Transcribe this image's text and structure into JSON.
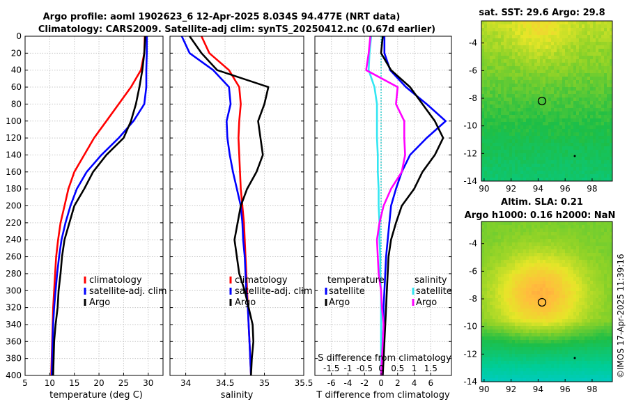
{
  "figure": {
    "title_line1": "Argo profile: aoml 1902623_6 12-Apr-2025 8.034S 94.477E (NRT data)",
    "title_line2": "Climatology: CARS2009. Satellite-adj clim: synTS_20250412.nc (0.67d earlier)",
    "watermark": "©IMOS 17-Apr-2025 11:39:16"
  },
  "colors": {
    "climatology": "#ff0000",
    "satellite": "#0000ff",
    "argo": "#000000",
    "s_satellite": "#33e6f2",
    "s_argo": "#ff00ff",
    "cyan_zero": "#00c0c0"
  },
  "legends": {
    "climatology": "climatology",
    "satellite": "satellite-adj. clim",
    "argo": "Argo",
    "temperature": "temperature",
    "salinity": "salinity",
    "sat_short": "satellite"
  },
  "chart_data": [
    {
      "type": "line",
      "id": "temperature",
      "xlabel": "temperature (deg C)",
      "xlim": [
        5,
        33
      ],
      "xticks": [
        5,
        10,
        15,
        20,
        25,
        30
      ],
      "ylim": [
        0,
        400
      ],
      "yticks": [
        0,
        20,
        40,
        60,
        80,
        100,
        120,
        140,
        160,
        180,
        200,
        220,
        240,
        260,
        280,
        300,
        320,
        340,
        360,
        380,
        400
      ],
      "series": [
        {
          "name": "climatology",
          "color": "#ff0000",
          "points": [
            [
              29.3,
              0
            ],
            [
              29.2,
              20
            ],
            [
              28.5,
              40
            ],
            [
              26.5,
              60
            ],
            [
              24,
              80
            ],
            [
              21.5,
              100
            ],
            [
              19,
              120
            ],
            [
              17,
              140
            ],
            [
              15,
              160
            ],
            [
              13.8,
              180
            ],
            [
              13,
              200
            ],
            [
              12.2,
              220
            ],
            [
              11.7,
              240
            ],
            [
              11.3,
              260
            ],
            [
              11.1,
              280
            ],
            [
              10.9,
              300
            ],
            [
              10.7,
              320
            ],
            [
              10.6,
              340
            ],
            [
              10.5,
              360
            ],
            [
              10.4,
              380
            ],
            [
              10.3,
              400
            ]
          ]
        },
        {
          "name": "satellite-adj. clim",
          "color": "#0000ff",
          "points": [
            [
              29.7,
              0
            ],
            [
              29.7,
              20
            ],
            [
              29.6,
              40
            ],
            [
              29.6,
              60
            ],
            [
              29.2,
              80
            ],
            [
              27,
              100
            ],
            [
              24,
              120
            ],
            [
              20.5,
              140
            ],
            [
              17.5,
              160
            ],
            [
              15.5,
              180
            ],
            [
              14.2,
              200
            ],
            [
              13.2,
              220
            ],
            [
              12.4,
              240
            ],
            [
              11.9,
              260
            ],
            [
              11.5,
              280
            ],
            [
              11.2,
              300
            ],
            [
              10.9,
              320
            ],
            [
              10.7,
              340
            ],
            [
              10.6,
              360
            ],
            [
              10.5,
              380
            ],
            [
              10.4,
              400
            ]
          ]
        },
        {
          "name": "Argo",
          "color": "#000000",
          "points": [
            [
              29.4,
              0
            ],
            [
              29.2,
              20
            ],
            [
              28.8,
              40
            ],
            [
              28.2,
              60
            ],
            [
              27.5,
              80
            ],
            [
              26.5,
              100
            ],
            [
              25,
              120
            ],
            [
              21.5,
              140
            ],
            [
              18.8,
              160
            ],
            [
              17,
              180
            ],
            [
              15,
              200
            ],
            [
              14,
              220
            ],
            [
              13,
              240
            ],
            [
              12.5,
              260
            ],
            [
              12.2,
              280
            ],
            [
              11.8,
              300
            ],
            [
              11.6,
              320
            ],
            [
              11.2,
              340
            ],
            [
              10.9,
              360
            ],
            [
              10.8,
              380
            ],
            [
              10.7,
              400
            ]
          ]
        }
      ]
    },
    {
      "type": "line",
      "id": "salinity",
      "xlabel": "salinity",
      "xlim": [
        33.8,
        35.5
      ],
      "xticks": [
        34,
        34.5,
        35,
        35.5
      ],
      "ylim": [
        0,
        400
      ],
      "series": [
        {
          "name": "climatology",
          "color": "#ff0000",
          "points": [
            [
              34.2,
              0
            ],
            [
              34.3,
              20
            ],
            [
              34.55,
              40
            ],
            [
              34.68,
              60
            ],
            [
              34.7,
              80
            ],
            [
              34.68,
              100
            ],
            [
              34.67,
              120
            ],
            [
              34.68,
              140
            ],
            [
              34.69,
              160
            ],
            [
              34.7,
              180
            ],
            [
              34.72,
              200
            ],
            [
              34.74,
              220
            ],
            [
              34.75,
              240
            ],
            [
              34.76,
              260
            ],
            [
              34.77,
              280
            ],
            [
              34.78,
              300
            ],
            [
              34.79,
              320
            ],
            [
              34.8,
              340
            ],
            [
              34.81,
              360
            ],
            [
              34.82,
              380
            ],
            [
              34.83,
              400
            ]
          ]
        },
        {
          "name": "satellite-adj. clim",
          "color": "#0000ff",
          "points": [
            [
              33.95,
              0
            ],
            [
              34.05,
              20
            ],
            [
              34.35,
              40
            ],
            [
              34.55,
              60
            ],
            [
              34.57,
              80
            ],
            [
              34.52,
              100
            ],
            [
              34.53,
              120
            ],
            [
              34.56,
              140
            ],
            [
              34.6,
              160
            ],
            [
              34.65,
              180
            ],
            [
              34.7,
              200
            ],
            [
              34.72,
              220
            ],
            [
              34.73,
              240
            ],
            [
              34.75,
              260
            ],
            [
              34.76,
              280
            ],
            [
              34.77,
              300
            ],
            [
              34.79,
              320
            ],
            [
              34.8,
              340
            ],
            [
              34.81,
              360
            ],
            [
              34.82,
              380
            ],
            [
              34.83,
              400
            ]
          ]
        },
        {
          "name": "Argo",
          "color": "#000000",
          "points": [
            [
              34.05,
              0
            ],
            [
              34.2,
              20
            ],
            [
              34.4,
              40
            ],
            [
              35.05,
              60
            ],
            [
              35.0,
              80
            ],
            [
              34.92,
              100
            ],
            [
              34.95,
              120
            ],
            [
              34.98,
              140
            ],
            [
              34.9,
              160
            ],
            [
              34.78,
              180
            ],
            [
              34.7,
              200
            ],
            [
              34.66,
              220
            ],
            [
              34.62,
              240
            ],
            [
              34.65,
              260
            ],
            [
              34.68,
              280
            ],
            [
              34.75,
              300
            ],
            [
              34.8,
              320
            ],
            [
              34.85,
              340
            ],
            [
              34.86,
              360
            ],
            [
              34.84,
              380
            ],
            [
              34.83,
              400
            ]
          ]
        }
      ]
    },
    {
      "type": "line",
      "id": "difference",
      "xlabel": "T difference from climatology",
      "xlim": [
        -8,
        8.5
      ],
      "xticks": [
        -6,
        -4,
        -2,
        0,
        2,
        4,
        6
      ],
      "sxlabel": "S difference from climatology",
      "sxticks": [
        {
          "label": "-1.5",
          "t": -6
        },
        {
          "label": "-1",
          "t": -4
        },
        {
          "label": "-0.5",
          "t": -2
        },
        {
          "label": "0",
          "t": 0
        },
        {
          "label": "0.5",
          "t": 2
        },
        {
          "label": "1",
          "t": 4
        },
        {
          "label": "1.5",
          "t": 6
        }
      ],
      "ylim": [
        0,
        400
      ],
      "series": [
        {
          "name": "T satellite",
          "color": "#0000ff",
          "points": [
            [
              0.4,
              0
            ],
            [
              0.4,
              20
            ],
            [
              1.1,
              40
            ],
            [
              3,
              60
            ],
            [
              5.5,
              80
            ],
            [
              7.8,
              100
            ],
            [
              5.5,
              120
            ],
            [
              3.5,
              140
            ],
            [
              2.5,
              160
            ],
            [
              1.8,
              180
            ],
            [
              1.2,
              200
            ],
            [
              1.0,
              220
            ],
            [
              0.8,
              240
            ],
            [
              0.6,
              260
            ],
            [
              0.5,
              280
            ],
            [
              0.4,
              300
            ],
            [
              0.3,
              320
            ],
            [
              0.3,
              340
            ],
            [
              0.2,
              360
            ],
            [
              0.2,
              380
            ],
            [
              0.1,
              400
            ]
          ]
        },
        {
          "name": "T Argo",
          "color": "#000000",
          "points": [
            [
              0.2,
              0
            ],
            [
              0,
              20
            ],
            [
              1.2,
              40
            ],
            [
              3.5,
              60
            ],
            [
              5,
              80
            ],
            [
              6.5,
              100
            ],
            [
              7.5,
              120
            ],
            [
              6.5,
              140
            ],
            [
              5,
              160
            ],
            [
              4,
              180
            ],
            [
              2.5,
              200
            ],
            [
              1.8,
              220
            ],
            [
              1.2,
              240
            ],
            [
              0.9,
              260
            ],
            [
              0.8,
              280
            ],
            [
              0.7,
              300
            ],
            [
              0.6,
              320
            ],
            [
              0.5,
              340
            ],
            [
              0.4,
              360
            ],
            [
              0.3,
              380
            ],
            [
              0.2,
              400
            ]
          ]
        },
        {
          "name": "S satellite",
          "color": "#33e6f2",
          "points": [
            [
              -1.2,
              0
            ],
            [
              -1.4,
              20
            ],
            [
              -1.5,
              40
            ],
            [
              -0.8,
              60
            ],
            [
              -0.5,
              80
            ],
            [
              -0.5,
              100
            ],
            [
              -0.5,
              120
            ],
            [
              -0.4,
              140
            ],
            [
              -0.4,
              160
            ],
            [
              -0.3,
              180
            ],
            [
              -0.3,
              200
            ],
            [
              -0.2,
              220
            ],
            [
              -0.2,
              240
            ],
            [
              -0.1,
              260
            ],
            [
              -0.1,
              280
            ],
            [
              0,
              300
            ],
            [
              0,
              320
            ],
            [
              0,
              340
            ],
            [
              0,
              360
            ],
            [
              0,
              380
            ],
            [
              0,
              400
            ]
          ]
        },
        {
          "name": "S Argo",
          "color": "#ff00ff",
          "points": [
            [
              -1.3,
              0
            ],
            [
              -1.5,
              20
            ],
            [
              -1.8,
              40
            ],
            [
              2,
              60
            ],
            [
              1.8,
              80
            ],
            [
              2.8,
              100
            ],
            [
              2.8,
              120
            ],
            [
              2.9,
              140
            ],
            [
              2.5,
              160
            ],
            [
              1.2,
              180
            ],
            [
              0.3,
              200
            ],
            [
              -0.2,
              220
            ],
            [
              -0.5,
              240
            ],
            [
              -0.4,
              260
            ],
            [
              -0.3,
              280
            ],
            [
              0,
              300
            ],
            [
              0.1,
              320
            ],
            [
              0.3,
              340
            ],
            [
              0.2,
              360
            ],
            [
              0.1,
              380
            ],
            [
              0,
              400
            ]
          ]
        }
      ]
    }
  ],
  "maps": {
    "sst": {
      "title": "sat. SST: 29.6 Argo: 29.8",
      "xticks": [
        "90",
        "92",
        "94",
        "96",
        "98"
      ],
      "yticks": [
        "-4",
        "-6",
        "-8",
        "-10",
        "-12",
        "-14"
      ]
    },
    "sla": {
      "title_line1": "Altim. SLA: 0.21",
      "title_line2": "Argo h1000: 0.16 h2000: NaN",
      "xticks": [
        "90",
        "92",
        "94",
        "96",
        "98"
      ],
      "yticks": [
        "-4",
        "-6",
        "-8",
        "-10",
        "-12",
        "-14"
      ]
    }
  }
}
